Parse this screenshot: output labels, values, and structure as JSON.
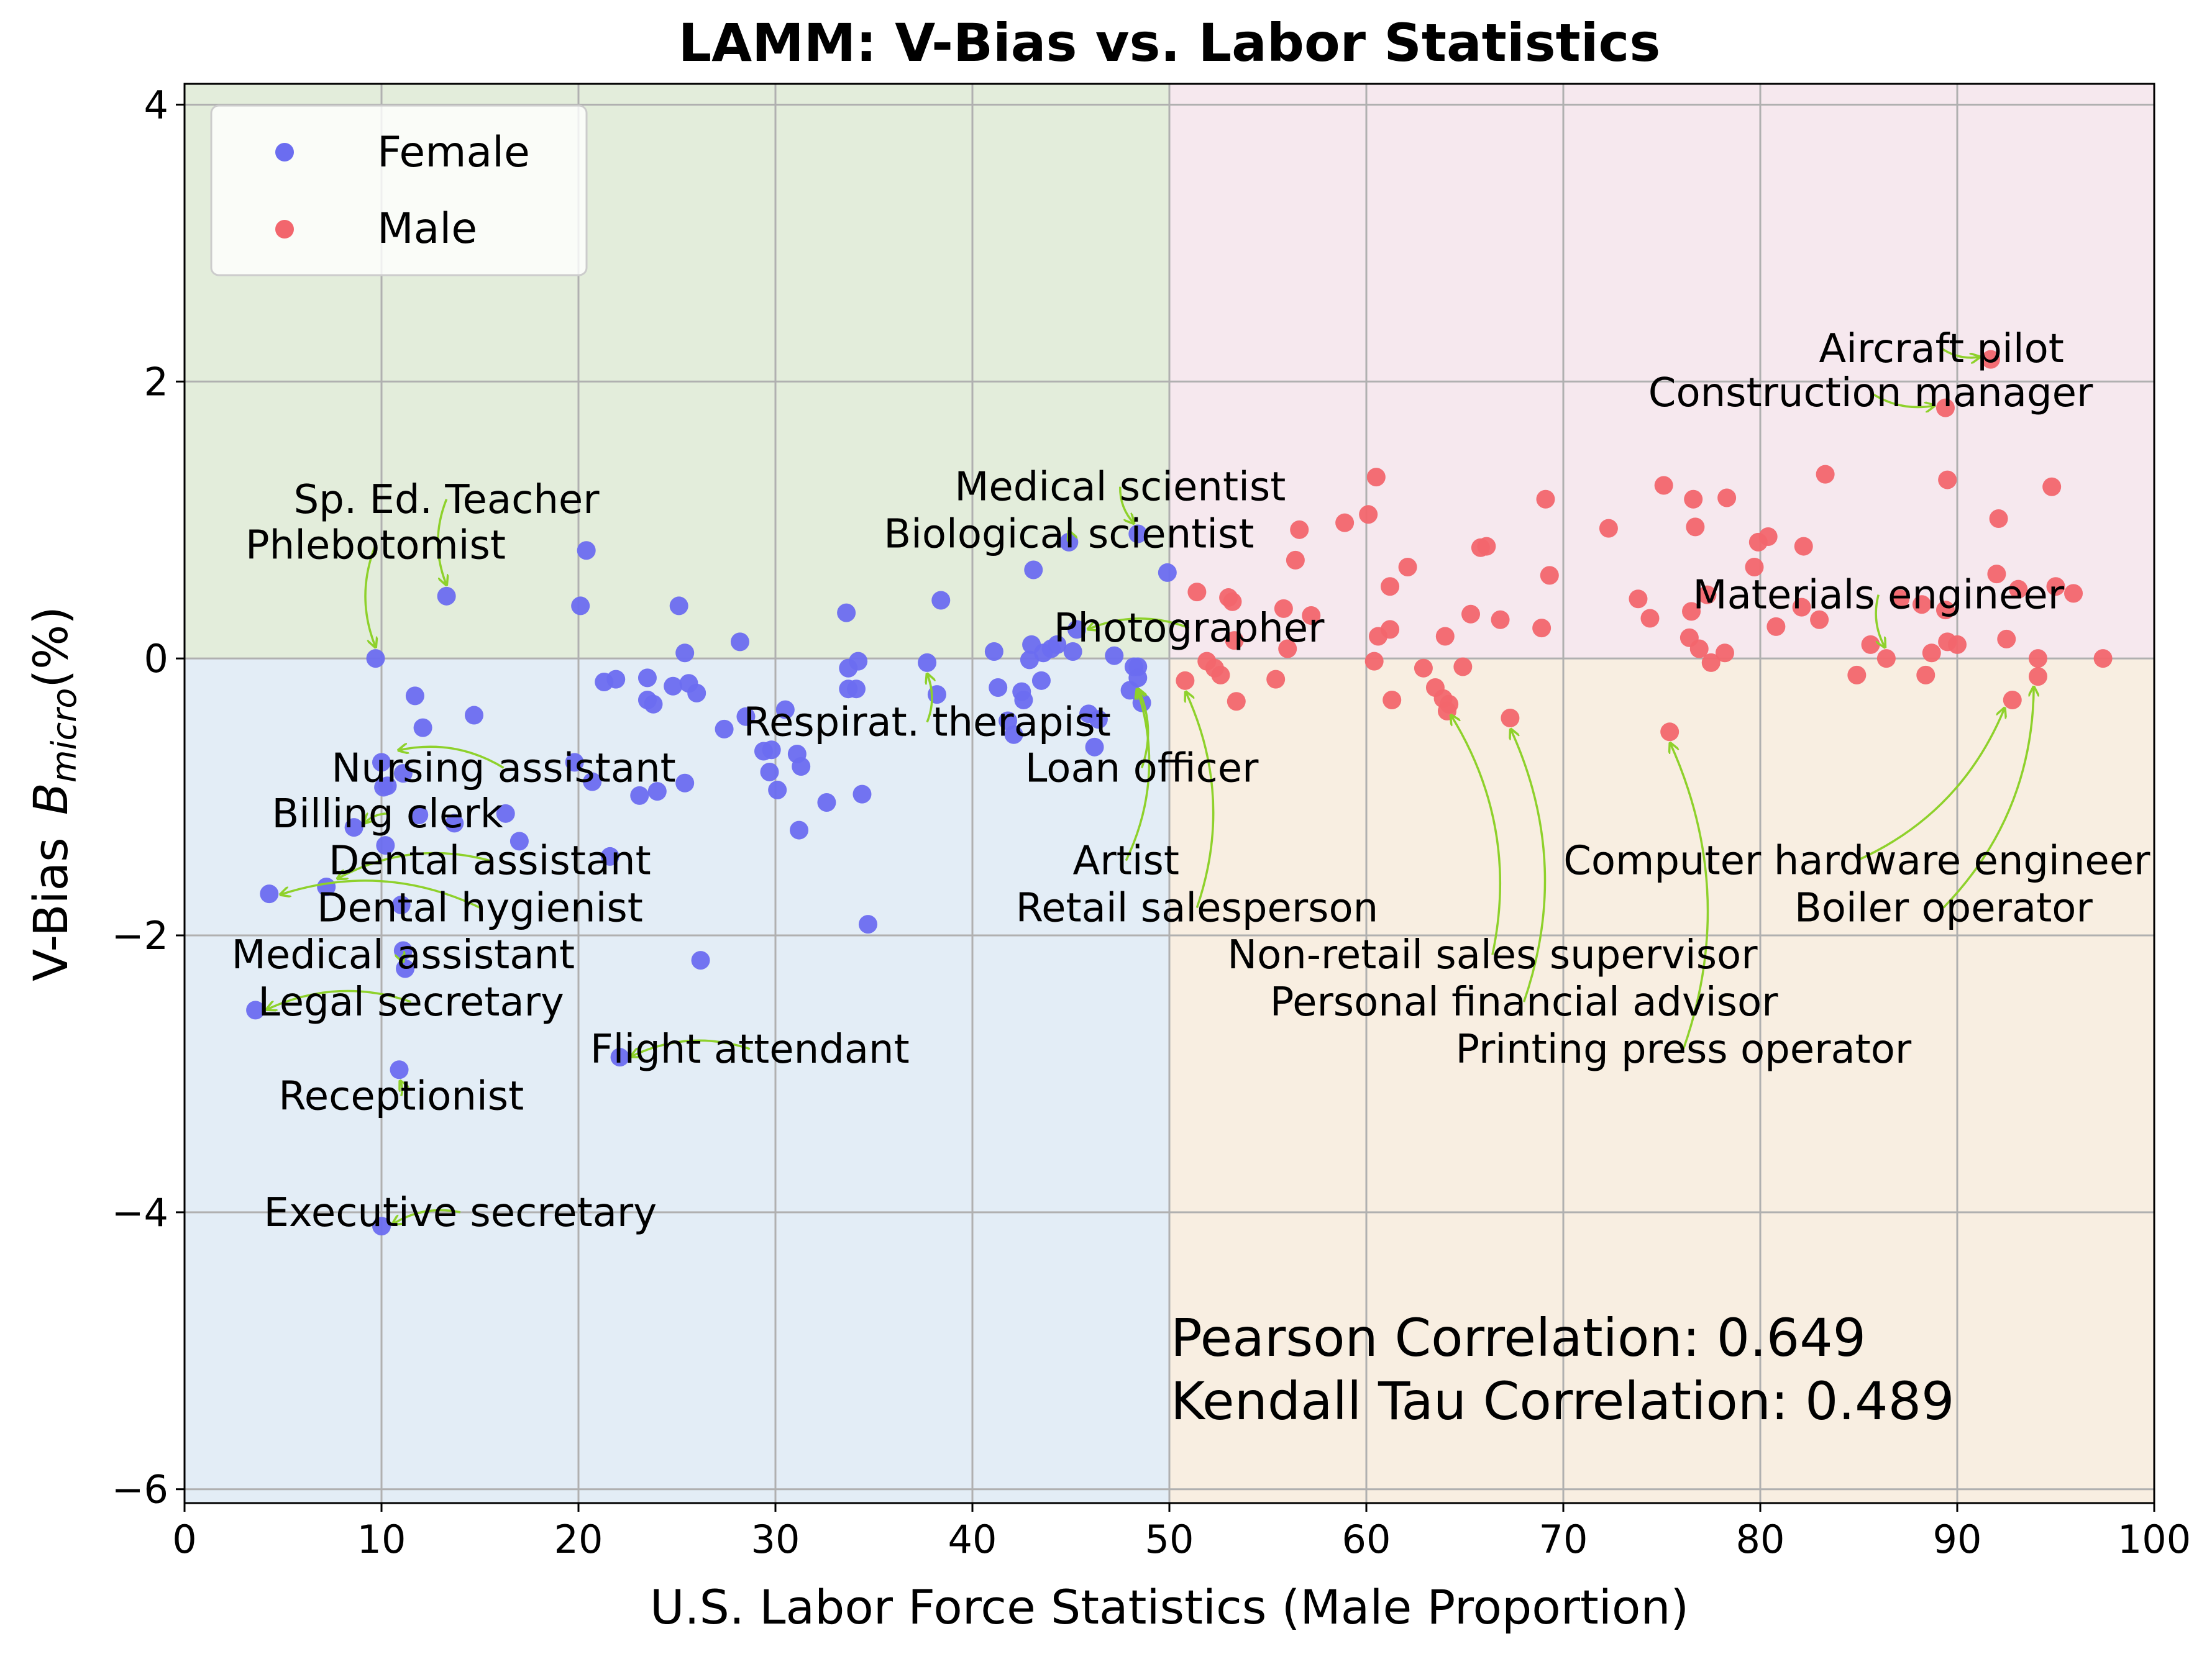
{
  "chart_data": {
    "type": "scatter",
    "title": "LAMM: V-Bias vs. Labor Statistics",
    "xlabel": "U.S. Labor Force Statistics (Male Proportion)",
    "ylabel": "V-Bias  B_micro(%)",
    "ylabel_main": "V-Bias",
    "ylabel_symbol": "B",
    "ylabel_sub": "micro",
    "ylabel_unit": "(%)",
    "xlim": [
      0,
      100
    ],
    "ylim": [
      -6.1,
      4.15
    ],
    "xticks": [
      0,
      10,
      20,
      30,
      40,
      50,
      60,
      70,
      80,
      90,
      100
    ],
    "yticks": [
      -6,
      -4,
      -2,
      0,
      2,
      4
    ],
    "ytick_labels": [
      "−6",
      "−4",
      "−2",
      "0",
      "2",
      "4"
    ],
    "grid": true,
    "legend_position": "top-left",
    "regions": [
      {
        "name": "female-positive",
        "x": [
          0,
          50
        ],
        "y": [
          0,
          4.15
        ],
        "color": "#e3eddb"
      },
      {
        "name": "male-positive",
        "x": [
          50,
          100
        ],
        "y": [
          0,
          4.15
        ],
        "color": "#f6e8ee"
      },
      {
        "name": "female-negative",
        "x": [
          0,
          50
        ],
        "y": [
          -6.1,
          0
        ],
        "color": "#e3edf6"
      },
      {
        "name": "male-negative",
        "x": [
          50,
          100
        ],
        "y": [
          -6.1,
          0
        ],
        "color": "#f8eee1"
      }
    ],
    "series": [
      {
        "name": "Female",
        "color": "#6b6df0",
        "points": [
          [
            13.3,
            0.45
          ],
          [
            9.7,
            0.0
          ],
          [
            20.4,
            0.78
          ],
          [
            20.1,
            0.38
          ],
          [
            25.1,
            0.38
          ],
          [
            14.7,
            -0.41
          ],
          [
            11.7,
            -0.27
          ],
          [
            12.1,
            -0.5
          ],
          [
            10.0,
            -0.75
          ],
          [
            10.1,
            -0.93
          ],
          [
            10.3,
            -0.92
          ],
          [
            11.1,
            -0.83
          ],
          [
            11.9,
            -1.13
          ],
          [
            8.6,
            -1.22
          ],
          [
            13.7,
            -1.19
          ],
          [
            16.3,
            -1.12
          ],
          [
            17.0,
            -1.32
          ],
          [
            10.2,
            -1.35
          ],
          [
            7.2,
            -1.65
          ],
          [
            4.3,
            -1.7
          ],
          [
            11.0,
            -1.78
          ],
          [
            11.2,
            -2.24
          ],
          [
            11.1,
            -2.11
          ],
          [
            3.6,
            -2.54
          ],
          [
            10.9,
            -2.97
          ],
          [
            22.1,
            -2.88
          ],
          [
            10.0,
            -4.1
          ],
          [
            21.3,
            -0.17
          ],
          [
            21.9,
            -0.15
          ],
          [
            23.5,
            -0.14
          ],
          [
            24.8,
            -0.2
          ],
          [
            25.4,
            0.04
          ],
          [
            25.6,
            -0.18
          ],
          [
            23.5,
            -0.3
          ],
          [
            23.8,
            -0.33
          ],
          [
            26.0,
            -0.25
          ],
          [
            19.8,
            -0.75
          ],
          [
            20.7,
            -0.89
          ],
          [
            21.6,
            -1.43
          ],
          [
            23.1,
            -0.99
          ],
          [
            24.0,
            -0.96
          ],
          [
            25.4,
            -0.9
          ],
          [
            26.2,
            -2.18
          ],
          [
            27.4,
            -0.51
          ],
          [
            28.2,
            0.12
          ],
          [
            28.5,
            -0.42
          ],
          [
            29.4,
            -0.67
          ],
          [
            29.7,
            -0.82
          ],
          [
            29.8,
            -0.66
          ],
          [
            30.1,
            -0.95
          ],
          [
            30.5,
            -0.37
          ],
          [
            31.1,
            -0.69
          ],
          [
            31.3,
            -0.78
          ],
          [
            31.2,
            -1.24
          ],
          [
            32.6,
            -1.04
          ],
          [
            33.6,
            0.33
          ],
          [
            33.7,
            -0.07
          ],
          [
            33.7,
            -0.22
          ],
          [
            34.1,
            -0.22
          ],
          [
            34.2,
            -0.02
          ],
          [
            34.4,
            -0.98
          ],
          [
            34.7,
            -1.92
          ],
          [
            37.7,
            -0.03
          ],
          [
            38.2,
            -0.26
          ],
          [
            38.4,
            0.42
          ],
          [
            41.1,
            0.05
          ],
          [
            41.3,
            -0.21
          ],
          [
            41.8,
            -0.45
          ],
          [
            42.1,
            -0.55
          ],
          [
            42.5,
            -0.24
          ],
          [
            42.6,
            -0.3
          ],
          [
            42.9,
            -0.01
          ],
          [
            43.0,
            0.1
          ],
          [
            43.1,
            0.64
          ],
          [
            43.5,
            -0.16
          ],
          [
            43.6,
            0.04
          ],
          [
            44.0,
            0.07
          ],
          [
            44.3,
            0.1
          ],
          [
            44.9,
            0.84
          ],
          [
            45.1,
            0.05
          ],
          [
            45.3,
            0.21
          ],
          [
            45.9,
            -0.4
          ],
          [
            46.2,
            -0.64
          ],
          [
            46.4,
            -0.44
          ],
          [
            47.2,
            0.02
          ],
          [
            48.0,
            -0.23
          ],
          [
            48.2,
            -0.06
          ],
          [
            48.4,
            -0.06
          ],
          [
            48.4,
            -0.14
          ],
          [
            48.6,
            -0.32
          ],
          [
            49.9,
            0.62
          ],
          [
            48.4,
            0.9
          ]
        ]
      },
      {
        "name": "Male",
        "color": "#f2666d",
        "points": [
          [
            91.7,
            2.16
          ],
          [
            89.4,
            1.81
          ],
          [
            50.8,
            -0.16
          ],
          [
            51.4,
            0.48
          ],
          [
            51.9,
            -0.02
          ],
          [
            52.3,
            -0.07
          ],
          [
            52.6,
            -0.12
          ],
          [
            53.0,
            0.44
          ],
          [
            53.2,
            0.41
          ],
          [
            53.3,
            0.13
          ],
          [
            53.4,
            -0.31
          ],
          [
            55.4,
            -0.15
          ],
          [
            55.8,
            0.36
          ],
          [
            56.0,
            0.07
          ],
          [
            56.4,
            0.71
          ],
          [
            56.6,
            0.93
          ],
          [
            57.2,
            0.31
          ],
          [
            58.9,
            0.98
          ],
          [
            60.1,
            1.04
          ],
          [
            60.4,
            -0.02
          ],
          [
            60.5,
            1.31
          ],
          [
            60.6,
            0.16
          ],
          [
            61.2,
            0.21
          ],
          [
            61.2,
            0.52
          ],
          [
            61.3,
            -0.3
          ],
          [
            62.1,
            0.66
          ],
          [
            62.9,
            -0.07
          ],
          [
            63.5,
            -0.21
          ],
          [
            63.9,
            -0.29
          ],
          [
            64.0,
            0.16
          ],
          [
            64.1,
            -0.38
          ],
          [
            64.2,
            -0.33
          ],
          [
            64.9,
            -0.06
          ],
          [
            65.3,
            0.32
          ],
          [
            65.8,
            0.8
          ],
          [
            66.1,
            0.81
          ],
          [
            66.8,
            0.28
          ],
          [
            67.3,
            -0.43
          ],
          [
            68.9,
            0.22
          ],
          [
            69.1,
            1.15
          ],
          [
            69.3,
            0.6
          ],
          [
            72.3,
            0.94
          ],
          [
            73.8,
            0.43
          ],
          [
            74.4,
            0.29
          ],
          [
            75.1,
            1.25
          ],
          [
            75.4,
            -0.53
          ],
          [
            76.4,
            0.15
          ],
          [
            76.5,
            0.34
          ],
          [
            76.6,
            1.15
          ],
          [
            76.7,
            0.95
          ],
          [
            76.9,
            0.07
          ],
          [
            77.3,
            0.46
          ],
          [
            77.5,
            -0.03
          ],
          [
            78.2,
            0.04
          ],
          [
            78.3,
            1.16
          ],
          [
            79.7,
            0.66
          ],
          [
            79.9,
            0.84
          ],
          [
            80.4,
            0.88
          ],
          [
            80.8,
            0.23
          ],
          [
            82.1,
            0.37
          ],
          [
            82.2,
            0.81
          ],
          [
            83.0,
            0.28
          ],
          [
            83.3,
            1.33
          ],
          [
            84.9,
            -0.12
          ],
          [
            85.6,
            0.1
          ],
          [
            86.4,
            0.0
          ],
          [
            87.1,
            0.43
          ],
          [
            88.2,
            0.39
          ],
          [
            88.4,
            -0.12
          ],
          [
            88.7,
            0.04
          ],
          [
            89.4,
            0.35
          ],
          [
            89.5,
            1.29
          ],
          [
            89.5,
            0.12
          ],
          [
            90.0,
            0.1
          ],
          [
            92.0,
            0.61
          ],
          [
            92.1,
            1.01
          ],
          [
            92.5,
            0.14
          ],
          [
            92.8,
            -0.3
          ],
          [
            93.1,
            0.5
          ],
          [
            94.1,
            0.0
          ],
          [
            94.1,
            -0.13
          ],
          [
            94.8,
            1.24
          ],
          [
            95.0,
            0.52
          ],
          [
            95.9,
            0.47
          ],
          [
            97.4,
            0.0
          ]
        ]
      }
    ],
    "annotations": [
      {
        "text": "Sp. Ed. Teacher",
        "point": [
          13.3,
          0.45
        ],
        "text_xy": [
          13.3,
          1.15
        ]
      },
      {
        "text": "Phlebotomist",
        "point": [
          9.7,
          0.0
        ],
        "text_xy": [
          9.7,
          0.82
        ]
      },
      {
        "text": "Nursing assistant",
        "point": [
          10.3,
          -0.65
        ],
        "text_xy": [
          16.2,
          -0.79
        ]
      },
      {
        "text": "Billing clerk",
        "point": [
          8.6,
          -1.22
        ],
        "text_xy": [
          10.3,
          -1.12
        ]
      },
      {
        "text": "Dental assistant",
        "point": [
          7.2,
          -1.6
        ],
        "text_xy": [
          15.5,
          -1.46
        ]
      },
      {
        "text": "Dental hygienist",
        "point": [
          4.3,
          -1.7
        ],
        "text_xy": [
          15.0,
          -1.8
        ]
      },
      {
        "text": "Medical assistant",
        "point": [
          11.1,
          -2.11
        ],
        "text_xy": [
          11.1,
          -2.14
        ]
      },
      {
        "text": "Legal secretary",
        "point": [
          3.6,
          -2.54
        ],
        "text_xy": [
          11.5,
          -2.48
        ]
      },
      {
        "text": "Flight attendant",
        "point": [
          22.1,
          -2.88
        ],
        "text_xy": [
          28.7,
          -2.82
        ]
      },
      {
        "text": "Receptionist",
        "point": [
          10.9,
          -2.97
        ],
        "text_xy": [
          11.0,
          -3.16
        ]
      },
      {
        "text": "Executive secretary",
        "point": [
          10.0,
          -4.1
        ],
        "text_xy": [
          14.0,
          -4.0
        ]
      },
      {
        "text": "Medical scientist",
        "point": [
          48.4,
          0.9
        ],
        "text_xy": [
          47.5,
          1.24
        ]
      },
      {
        "text": "Biological scientist",
        "point": [
          44.9,
          0.84
        ],
        "text_xy": [
          44.9,
          0.9
        ]
      },
      {
        "text": "Photographer",
        "point": [
          45.3,
          0.21
        ],
        "text_xy": [
          51.0,
          0.22
        ]
      },
      {
        "text": "Respirat. therapist",
        "point": [
          37.7,
          -0.03
        ],
        "text_xy": [
          37.7,
          -0.46
        ]
      },
      {
        "text": "Loan officer",
        "point": [
          48.4,
          -0.14
        ],
        "text_xy": [
          48.6,
          -0.79
        ]
      },
      {
        "text": "Artist",
        "point": [
          48.4,
          -0.14
        ],
        "text_xy": [
          47.8,
          -1.46
        ]
      },
      {
        "text": "Retail salesperson",
        "point": [
          50.8,
          -0.16
        ],
        "text_xy": [
          51.4,
          -1.8
        ]
      },
      {
        "text": "Non-retail sales supervisor",
        "point": [
          64.2,
          -0.33
        ],
        "text_xy": [
          66.4,
          -2.14
        ]
      },
      {
        "text": "Personal financial advisor",
        "point": [
          67.3,
          -0.43
        ],
        "text_xy": [
          68.0,
          -2.48
        ]
      },
      {
        "text": "Printing press operator",
        "point": [
          75.4,
          -0.53
        ],
        "text_xy": [
          76.1,
          -2.82
        ]
      },
      {
        "text": "Computer hardware engineer",
        "point": [
          92.8,
          -0.3
        ],
        "text_xy": [
          84.9,
          -1.46
        ]
      },
      {
        "text": "Boiler operator",
        "point": [
          94.1,
          -0.13
        ],
        "text_xy": [
          89.3,
          -1.8
        ]
      },
      {
        "text": "Materials engineer",
        "point": [
          86.4,
          0.0
        ],
        "text_xy": [
          86.0,
          0.46
        ]
      },
      {
        "text": "Aircraft pilot",
        "point": [
          91.7,
          2.16
        ],
        "text_xy": [
          89.2,
          2.24
        ]
      },
      {
        "text": "Construction manager",
        "point": [
          89.4,
          1.81
        ],
        "text_xy": [
          85.6,
          1.92
        ]
      }
    ],
    "arrow_color": "#8ed12b",
    "stats": {
      "pearson_label": "Pearson Correlation: 0.649",
      "kendall_label": "Kendall Tau Correlation: 0.489"
    }
  }
}
